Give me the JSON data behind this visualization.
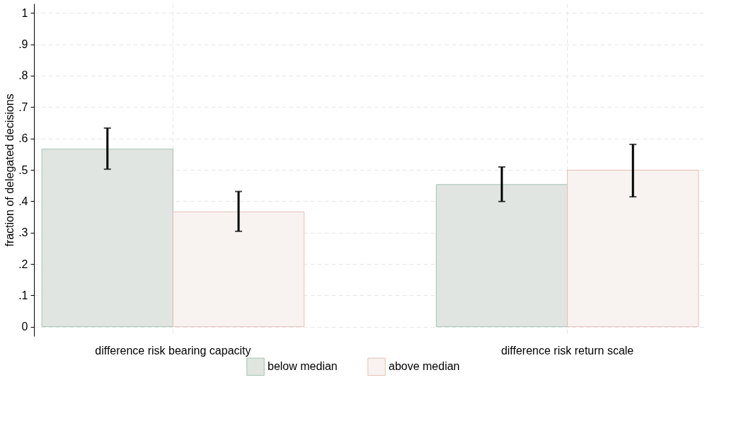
{
  "chart_data": {
    "type": "bar",
    "ylabel": "fraction of delegated decisions",
    "categories": [
      "difference risk bearing capacity",
      "difference risk return scale"
    ],
    "series": [
      {
        "name": "below median",
        "color": "#e0e5e2",
        "values": [
          0.566,
          0.453
        ],
        "errors": [
          [
            0.502,
            0.633
          ],
          [
            0.399,
            0.509
          ]
        ]
      },
      {
        "name": "above median",
        "color": "#f8f2f0",
        "values": [
          0.366,
          0.499
        ],
        "errors": [
          [
            0.304,
            0.431
          ],
          [
            0.414,
            0.581
          ]
        ]
      }
    ],
    "ylim": [
      -0.03,
      1.03
    ],
    "yticks": [
      0,
      {
        "value": 0.1,
        "label": ".1"
      },
      {
        "value": 0.2,
        "label": ".2"
      },
      {
        "value": 0.3,
        "label": ".3"
      },
      {
        "value": 0.4,
        "label": ".4"
      },
      {
        "value": 0.5,
        "label": ".5"
      },
      {
        "value": 0.6,
        "label": ".6"
      },
      {
        "value": 0.7,
        "label": ".7"
      },
      {
        "value": 0.8,
        "label": ".8"
      },
      {
        "value": 0.9,
        "label": ".9"
      },
      1
    ],
    "grid": true,
    "legend": "bottom"
  }
}
